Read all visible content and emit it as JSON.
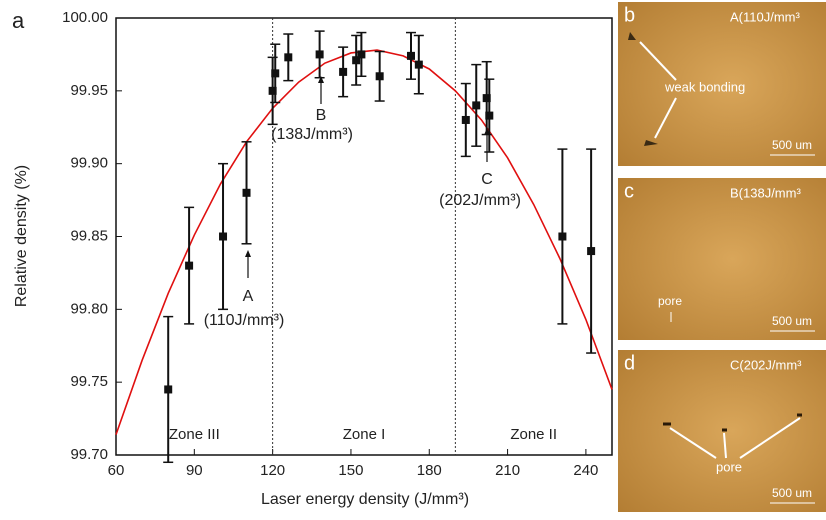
{
  "chart_data": {
    "type": "scatter",
    "panel_letter": "a",
    "xlabel": "Laser energy density (J/mm³)",
    "ylabel": "Relative density (%)",
    "xlim": [
      60,
      250
    ],
    "xticks": [
      60,
      90,
      120,
      150,
      180,
      210,
      240
    ],
    "ylim": [
      99.7,
      100.0
    ],
    "yticks": [
      {
        "value": 99.7,
        "label": "99.70"
      },
      {
        "value": 99.75,
        "label": "99.75"
      },
      {
        "value": 99.8,
        "label": "99.80"
      },
      {
        "value": 99.85,
        "label": "99.85"
      },
      {
        "value": 99.9,
        "label": "99.90"
      },
      {
        "value": 99.95,
        "label": "99.95"
      },
      {
        "value": 100.0,
        "label": "100.00"
      }
    ],
    "x": [
      80,
      88,
      101,
      110,
      120,
      121,
      126,
      138,
      147,
      152,
      154,
      161,
      173,
      176,
      194,
      198,
      202,
      203,
      231,
      242
    ],
    "values": [
      99.745,
      99.83,
      99.85,
      99.88,
      99.95,
      99.962,
      99.973,
      99.975,
      99.963,
      99.971,
      99.975,
      99.96,
      99.974,
      99.968,
      99.93,
      99.94,
      99.945,
      99.933,
      99.85,
      99.84
    ],
    "errors": [
      0.05,
      0.04,
      0.05,
      0.035,
      0.023,
      0.02,
      0.016,
      0.016,
      0.017,
      0.017,
      0.015,
      0.017,
      0.016,
      0.02,
      0.025,
      0.028,
      0.025,
      0.025,
      0.06,
      0.07
    ],
    "color": "#111111",
    "fit": {
      "color": "#e01010",
      "x": [
        60,
        70,
        80,
        90,
        100,
        110,
        120,
        130,
        140,
        150,
        160,
        170,
        180,
        190,
        200,
        210,
        220,
        230,
        240,
        250
      ],
      "values": [
        99.714,
        99.765,
        99.811,
        99.851,
        99.886,
        99.915,
        99.938,
        99.956,
        99.969,
        99.976,
        99.978,
        99.974,
        99.965,
        99.95,
        99.93,
        99.904,
        99.872,
        99.835,
        99.793,
        99.745
      ]
    },
    "zone_bounds": [
      120,
      190
    ],
    "zones": [
      "Zone III",
      "Zone I",
      "Zone II"
    ],
    "annotations": [
      {
        "label": "A",
        "note": "(110J/mm³)"
      },
      {
        "label": "B",
        "note": "(138J/mm³)"
      },
      {
        "label": "C",
        "note": "(202J/mm³)"
      }
    ]
  },
  "panels": [
    {
      "letter": "b",
      "caption": "A(110J/mm³",
      "note": "weak bonding",
      "scale": "500 um"
    },
    {
      "letter": "c",
      "caption": "B(138J/mm³",
      "note": "pore",
      "scale": "500 um"
    },
    {
      "letter": "d",
      "caption": "C(202J/mm³",
      "note": "pore",
      "scale": "500 um"
    }
  ]
}
